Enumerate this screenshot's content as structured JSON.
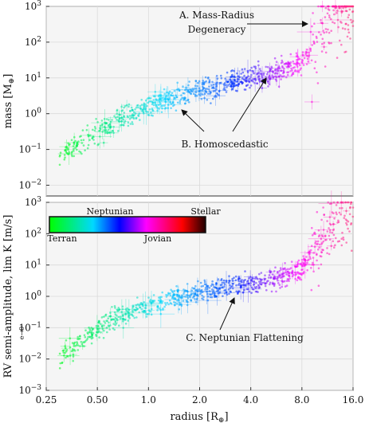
{
  "chart_data": [
    {
      "type": "scatter",
      "panel": "top",
      "ylabel_main": "mass",
      "ylabel_unit": "[M",
      "ylabel_sub": "⊕",
      "xscale": "log2",
      "yscale": "log10",
      "xlim": [
        0.25,
        16.0
      ],
      "ylim": [
        0.005,
        1000
      ],
      "ytick_labels": [
        {
          "value": 0.01,
          "base": "10",
          "exp": "−2"
        },
        {
          "value": 0.1,
          "base": "10",
          "exp": "−1"
        },
        {
          "value": 1,
          "base": "10",
          "exp": "0"
        },
        {
          "value": 10,
          "base": "10",
          "exp": "1"
        },
        {
          "value": 100,
          "base": "10",
          "exp": "2"
        },
        {
          "value": 1000,
          "base": "10",
          "exp": "3"
        }
      ],
      "grid": true,
      "series": [
        {
          "values": [
            [
              0.35,
              0.1
            ],
            [
              0.5,
              0.3
            ],
            [
              0.7,
              0.8
            ],
            [
              1.0,
              1.6
            ],
            [
              1.5,
              3.0
            ],
            [
              2.0,
              4.5
            ],
            [
              3.0,
              7.0
            ],
            [
              4.0,
              10
            ],
            [
              6.0,
              15
            ],
            [
              8.0,
              30
            ],
            [
              9.5,
              80
            ],
            [
              11,
              300
            ],
            [
              13,
              700
            ],
            [
              16,
              900
            ]
          ]
        }
      ],
      "annotations": [
        {
          "lines": [
            "A. Mass-Radius",
            "Degeneracy"
          ],
          "arrow_to": [
            10.5,
            150
          ]
        },
        {
          "lines": [
            "B. Homoscedastic"
          ],
          "arrows_to": [
            [
              1.4,
              1.4
            ],
            [
              5.2,
              10
            ]
          ]
        }
      ]
    },
    {
      "type": "scatter",
      "panel": "bottom",
      "ylabel_main": "RV semi-amplitude, lim K [m/s]",
      "ylabel_sub": "e→0",
      "xlabel_main": "radius [R",
      "xlabel_sub": "⊕",
      "xlabel_end": "]",
      "xscale": "log2",
      "yscale": "log10",
      "xlim": [
        0.25,
        16.0
      ],
      "ylim": [
        0.001,
        1000
      ],
      "xticks": [
        0.25,
        0.5,
        1.0,
        2.0,
        4.0,
        8.0,
        16.0
      ],
      "xtick_labels": [
        "0.25",
        "0.50",
        "1.0",
        "2.0",
        "4.0",
        "8.0",
        "16.0"
      ],
      "ytick_labels": [
        {
          "value": 0.001,
          "base": "10",
          "exp": "−3"
        },
        {
          "value": 0.01,
          "base": "10",
          "exp": "−2"
        },
        {
          "value": 0.1,
          "base": "10",
          "exp": "−1"
        },
        {
          "value": 1,
          "base": "10",
          "exp": "0"
        },
        {
          "value": 10,
          "base": "10",
          "exp": "1"
        },
        {
          "value": 100,
          "base": "10",
          "exp": "2"
        },
        {
          "value": 1000,
          "base": "10",
          "exp": "3"
        }
      ],
      "grid": true,
      "series": [
        {
          "values": [
            [
              0.35,
              0.02
            ],
            [
              0.5,
              0.1
            ],
            [
              0.7,
              0.25
            ],
            [
              1.0,
              0.5
            ],
            [
              1.5,
              1.0
            ],
            [
              2.0,
              1.5
            ],
            [
              3.0,
              2.0
            ],
            [
              4.0,
              2.5
            ],
            [
              6.0,
              4.0
            ],
            [
              8.0,
              8.0
            ],
            [
              9.5,
              30
            ],
            [
              11,
              100
            ],
            [
              13,
              300
            ],
            [
              16,
              500
            ]
          ]
        }
      ],
      "annotations": [
        {
          "lines": [
            "C. Neptunian Flattening"
          ],
          "arrow_to": [
            3.3,
            1.0
          ]
        }
      ],
      "colorbar": {
        "labels_top": [
          "Neptunian",
          "Stellar"
        ],
        "labels_bottom": [
          "Terran",
          "Jovian"
        ],
        "stops": [
          "#00ff00",
          "#00d8ff",
          "#0000ff",
          "#ff00ff",
          "#ff0000",
          "#000000"
        ]
      }
    }
  ]
}
